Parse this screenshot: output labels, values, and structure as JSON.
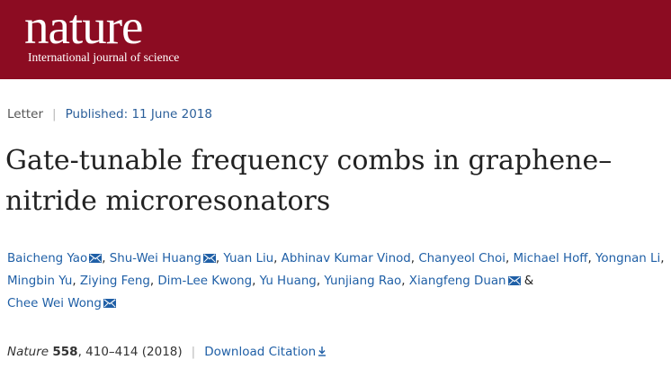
{
  "header": {
    "logo": "nature",
    "tagline": "International journal of science",
    "brand_color": "#8c0c22"
  },
  "meta": {
    "article_type": "Letter",
    "published": "Published: 11 June 2018"
  },
  "article": {
    "title": "Gate-tunable frequency combs in graphene–nitride microresonators"
  },
  "authors": [
    {
      "name": "Baicheng Yao",
      "mail": true
    },
    {
      "name": "Shu-Wei Huang",
      "mail": true
    },
    {
      "name": "Yuan Liu",
      "mail": false
    },
    {
      "name": "Abhinav Kumar Vinod",
      "mail": false
    },
    {
      "name": "Chanyeol Choi",
      "mail": false
    },
    {
      "name": "Michael Hoff",
      "mail": false
    },
    {
      "name": "Yongnan Li",
      "mail": false
    },
    {
      "name": "Mingbin Yu",
      "mail": false
    },
    {
      "name": "Ziying Feng",
      "mail": false
    },
    {
      "name": "Dim-Lee Kwong",
      "mail": false
    },
    {
      "name": "Yu Huang",
      "mail": false
    },
    {
      "name": "Yunjiang Rao",
      "mail": false
    },
    {
      "name": "Xiangfeng Duan",
      "mail": true
    },
    {
      "name": "Chee Wei Wong",
      "mail": true
    }
  ],
  "citation": {
    "journal": "Nature",
    "volume": "558",
    "pages": "410–414",
    "year": "(2018)",
    "download_label": "Download Citation"
  },
  "icons": {
    "mail": "envelope-icon",
    "download": "download-arrow-icon"
  }
}
